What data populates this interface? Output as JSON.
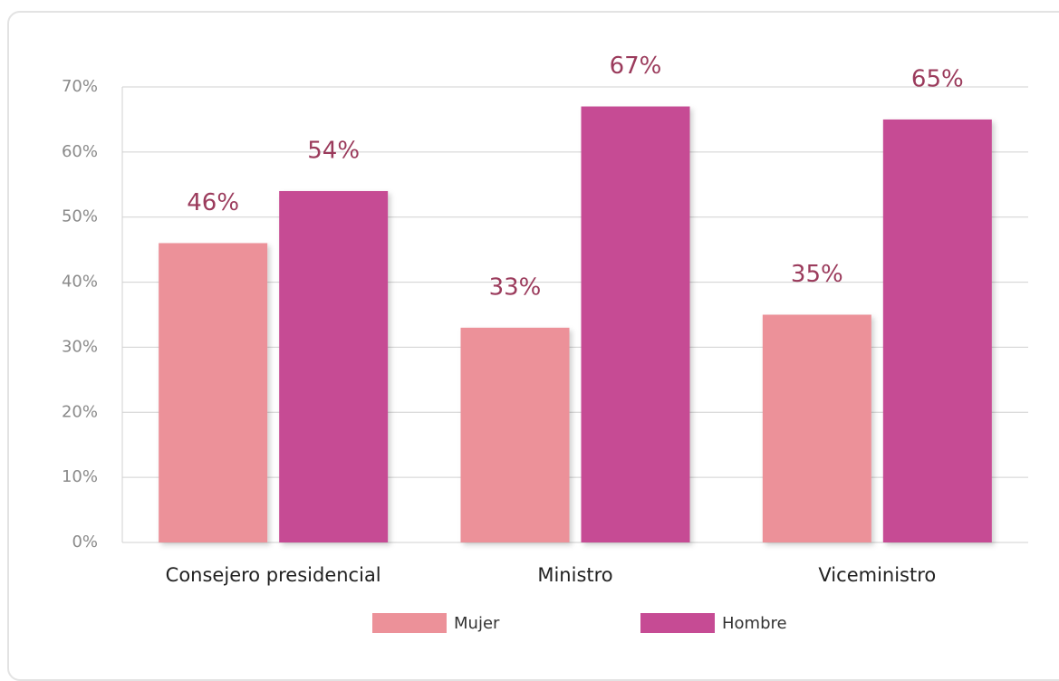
{
  "chart_data": {
    "type": "bar",
    "categories": [
      "Consejero presidencial",
      "Ministro",
      "Viceministro"
    ],
    "series": [
      {
        "name": "Mujer",
        "color": "#ec9199",
        "values": [
          46,
          33,
          35
        ],
        "value_labels": [
          "46%",
          "33%",
          "35%"
        ]
      },
      {
        "name": "Hombre",
        "color": "#c64b94",
        "values": [
          54,
          67,
          65
        ],
        "value_labels": [
          "54%",
          "67%",
          "65%"
        ]
      }
    ],
    "ylim": [
      0,
      70
    ],
    "yticks": [
      {
        "value": 0,
        "label": "0%"
      },
      {
        "value": 10,
        "label": "10%"
      },
      {
        "value": 20,
        "label": "20%"
      },
      {
        "value": 30,
        "label": "30%"
      },
      {
        "value": 40,
        "label": "40%"
      },
      {
        "value": 50,
        "label": "50%"
      },
      {
        "value": 60,
        "label": "60%"
      },
      {
        "value": 70,
        "label": "70%"
      }
    ],
    "grid": true,
    "legend": "bottom"
  }
}
